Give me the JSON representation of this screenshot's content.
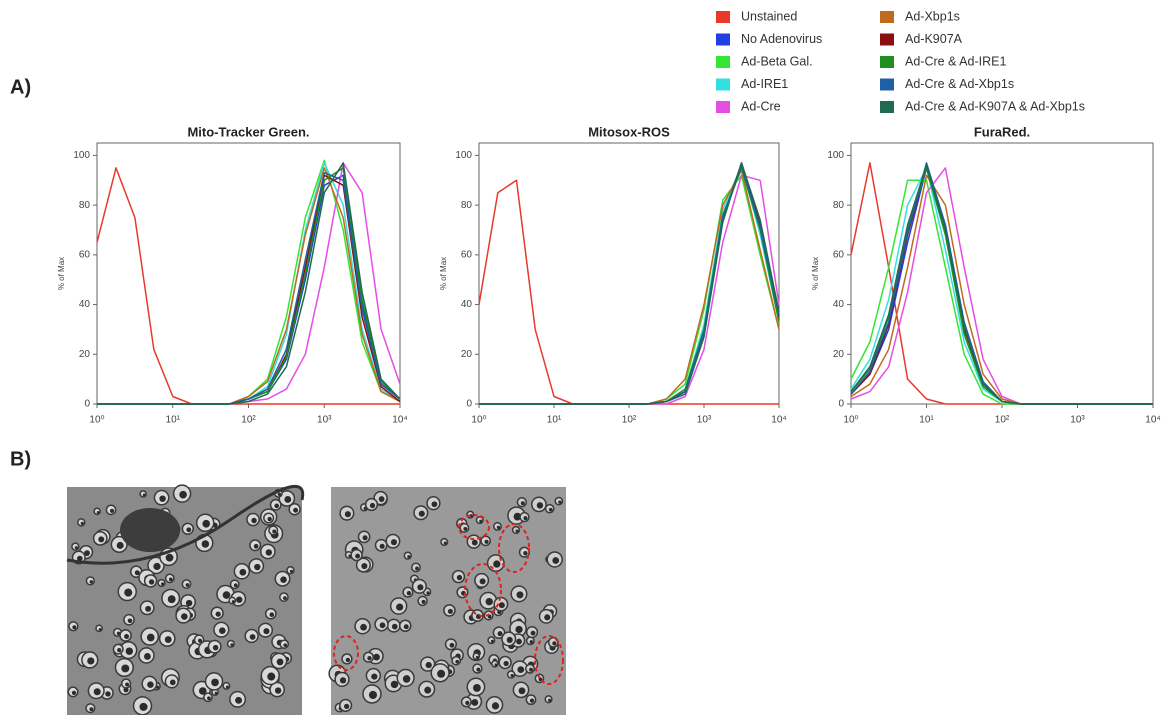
{
  "figure": {
    "panel_a_label": "A)",
    "panel_b_label": "B)"
  },
  "legend": {
    "entries": [
      {
        "name": "Unstained",
        "color": "#e8392b"
      },
      {
        "name": "No Adenovirus",
        "color": "#1f3fe0"
      },
      {
        "name": "Ad-Beta Gal.",
        "color": "#33e633"
      },
      {
        "name": "Ad-IRE1",
        "color": "#33e0e0"
      },
      {
        "name": "Ad-Cre",
        "color": "#e64de6"
      },
      {
        "name": "Ad-Xbp1s",
        "color": "#c06a1f"
      },
      {
        "name": "Ad-K907A",
        "color": "#8b0f0f"
      },
      {
        "name": "Ad-Cre & Ad-IRE1",
        "color": "#1f8f1f"
      },
      {
        "name": "Ad-Cre & Ad-Xbp1s",
        "color": "#1f5fa8"
      },
      {
        "name": "Ad-Cre & Ad-K907A & Ad-Xbp1s",
        "color": "#1f6b4f"
      }
    ]
  },
  "chart_data": [
    {
      "type": "line",
      "title": "Mito-Tracker Green.",
      "y_label": "% of Max",
      "xscale": "log",
      "xlim": [
        1,
        10000
      ],
      "ylim": [
        0,
        105
      ],
      "xticks": [
        {
          "value": 1,
          "label": "10⁰"
        },
        {
          "value": 10,
          "label": "10¹"
        },
        {
          "value": 100,
          "label": "10²"
        },
        {
          "value": 1000,
          "label": "10³"
        },
        {
          "value": 10000,
          "label": "10⁴"
        }
      ],
      "yticks": [
        0,
        20,
        40,
        60,
        80,
        100
      ],
      "x": [
        1,
        1.78,
        3.16,
        5.62,
        10,
        17.8,
        31.6,
        56.2,
        100,
        178,
        316,
        562,
        1000,
        1778,
        3162,
        5623,
        10000
      ],
      "series": [
        {
          "values": [
            65,
            95,
            75,
            22,
            3,
            0,
            0,
            0,
            0,
            0,
            0,
            0,
            0,
            0,
            0,
            0,
            0
          ]
        },
        {
          "values": [
            0,
            0,
            0,
            0,
            0,
            0,
            0,
            0,
            2,
            5,
            18,
            50,
            88,
            92,
            40,
            8,
            2
          ]
        },
        {
          "values": [
            0,
            0,
            0,
            0,
            0,
            0,
            0,
            0,
            3,
            10,
            35,
            75,
            98,
            70,
            25,
            5,
            1
          ]
        },
        {
          "values": [
            0,
            0,
            0,
            0,
            0,
            0,
            0,
            0,
            2,
            7,
            28,
            70,
            97,
            80,
            30,
            6,
            1
          ]
        },
        {
          "values": [
            0,
            0,
            0,
            0,
            0,
            0,
            0,
            0,
            1,
            2,
            6,
            20,
            55,
            97,
            85,
            30,
            8
          ]
        },
        {
          "values": [
            0,
            0,
            0,
            0,
            0,
            0,
            0,
            0,
            3,
            9,
            30,
            68,
            95,
            75,
            28,
            5,
            1
          ]
        },
        {
          "values": [
            0,
            0,
            0,
            0,
            0,
            0,
            0,
            0,
            2,
            5,
            20,
            55,
            92,
            88,
            35,
            7,
            1
          ]
        },
        {
          "values": [
            0,
            0,
            0,
            0,
            0,
            0,
            0,
            0,
            2,
            5,
            19,
            52,
            90,
            95,
            42,
            9,
            2
          ]
        },
        {
          "values": [
            0,
            0,
            0,
            0,
            0,
            0,
            0,
            0,
            2,
            6,
            22,
            58,
            93,
            90,
            38,
            8,
            2
          ]
        },
        {
          "values": [
            0,
            0,
            0,
            0,
            0,
            0,
            0,
            0,
            1,
            4,
            15,
            45,
            85,
            97,
            45,
            10,
            2
          ]
        }
      ]
    },
    {
      "type": "line",
      "title": "Mitosox-ROS",
      "y_label": "% of Max",
      "xscale": "log",
      "xlim": [
        1,
        10000
      ],
      "ylim": [
        0,
        105
      ],
      "xticks": [
        {
          "value": 1,
          "label": "10⁰"
        },
        {
          "value": 10,
          "label": "10¹"
        },
        {
          "value": 100,
          "label": "10²"
        },
        {
          "value": 1000,
          "label": "10³"
        },
        {
          "value": 10000,
          "label": "10⁴"
        }
      ],
      "yticks": [
        0,
        20,
        40,
        60,
        80,
        100
      ],
      "x": [
        1,
        1.78,
        3.16,
        5.62,
        10,
        17.8,
        31.6,
        56.2,
        100,
        178,
        316,
        562,
        1000,
        1778,
        3162,
        5623,
        10000
      ],
      "series": [
        {
          "values": [
            40,
            85,
            90,
            30,
            3,
            0,
            0,
            0,
            0,
            0,
            0,
            0,
            0,
            0,
            0,
            0,
            0
          ]
        },
        {
          "values": [
            0,
            0,
            0,
            0,
            0,
            0,
            0,
            0,
            0,
            0,
            1,
            5,
            30,
            75,
            95,
            70,
            35
          ]
        },
        {
          "values": [
            0,
            0,
            0,
            0,
            0,
            0,
            0,
            0,
            0,
            0,
            2,
            8,
            38,
            82,
            92,
            60,
            30
          ]
        },
        {
          "values": [
            0,
            0,
            0,
            0,
            0,
            0,
            0,
            0,
            0,
            0,
            1,
            6,
            32,
            78,
            96,
            68,
            33
          ]
        },
        {
          "values": [
            0,
            0,
            0,
            0,
            0,
            0,
            0,
            0,
            0,
            0,
            0,
            3,
            22,
            65,
            92,
            90,
            40
          ]
        },
        {
          "values": [
            0,
            0,
            0,
            0,
            0,
            0,
            0,
            0,
            0,
            0,
            2,
            10,
            40,
            80,
            94,
            62,
            30
          ]
        },
        {
          "values": [
            0,
            0,
            0,
            0,
            0,
            0,
            0,
            0,
            0,
            0,
            1,
            5,
            28,
            74,
            97,
            72,
            34
          ]
        },
        {
          "values": [
            0,
            0,
            0,
            0,
            0,
            0,
            0,
            0,
            0,
            0,
            1,
            6,
            30,
            76,
            95,
            70,
            33
          ]
        },
        {
          "values": [
            0,
            0,
            0,
            0,
            0,
            0,
            0,
            0,
            0,
            0,
            1,
            5,
            29,
            75,
            96,
            71,
            36
          ]
        },
        {
          "values": [
            0,
            0,
            0,
            0,
            0,
            0,
            0,
            0,
            0,
            0,
            1,
            4,
            27,
            73,
            97,
            74,
            37
          ]
        }
      ]
    },
    {
      "type": "line",
      "title": "FuraRed.",
      "y_label": "% of Max",
      "xscale": "log",
      "xlim": [
        1,
        10000
      ],
      "ylim": [
        0,
        105
      ],
      "xticks": [
        {
          "value": 1,
          "label": "10⁰"
        },
        {
          "value": 10,
          "label": "10¹"
        },
        {
          "value": 100,
          "label": "10²"
        },
        {
          "value": 1000,
          "label": "10³"
        },
        {
          "value": 10000,
          "label": "10⁴"
        }
      ],
      "yticks": [
        0,
        20,
        40,
        60,
        80,
        100
      ],
      "x": [
        1,
        1.78,
        3.16,
        5.62,
        10,
        17.8,
        31.6,
        56.2,
        100,
        178,
        316,
        562,
        1000,
        1778,
        3162,
        5623,
        10000
      ],
      "series": [
        {
          "values": [
            60,
            97,
            55,
            10,
            2,
            0,
            0,
            0,
            0,
            0,
            0,
            0,
            0,
            0,
            0,
            0,
            0
          ]
        },
        {
          "values": [
            4,
            12,
            30,
            65,
            95,
            72,
            32,
            8,
            1,
            0,
            0,
            0,
            0,
            0,
            0,
            0,
            0
          ]
        },
        {
          "values": [
            10,
            25,
            55,
            90,
            90,
            55,
            20,
            4,
            0,
            0,
            0,
            0,
            0,
            0,
            0,
            0,
            0
          ]
        },
        {
          "values": [
            6,
            18,
            42,
            80,
            95,
            62,
            25,
            6,
            1,
            0,
            0,
            0,
            0,
            0,
            0,
            0,
            0
          ]
        },
        {
          "values": [
            2,
            5,
            15,
            45,
            85,
            95,
            55,
            18,
            3,
            0,
            0,
            0,
            0,
            0,
            0,
            0,
            0
          ]
        },
        {
          "values": [
            3,
            8,
            22,
            55,
            92,
            80,
            40,
            12,
            2,
            0,
            0,
            0,
            0,
            0,
            0,
            0,
            0
          ]
        },
        {
          "values": [
            4,
            12,
            32,
            68,
            96,
            70,
            30,
            8,
            1,
            0,
            0,
            0,
            0,
            0,
            0,
            0,
            0
          ]
        },
        {
          "values": [
            5,
            14,
            35,
            70,
            95,
            68,
            28,
            7,
            1,
            0,
            0,
            0,
            0,
            0,
            0,
            0,
            0
          ]
        },
        {
          "values": [
            4,
            13,
            33,
            69,
            97,
            72,
            33,
            9,
            1,
            0,
            0,
            0,
            0,
            0,
            0,
            0,
            0
          ]
        },
        {
          "values": [
            5,
            15,
            36,
            72,
            96,
            70,
            31,
            8,
            1,
            0,
            0,
            0,
            0,
            0,
            0,
            0,
            0
          ]
        }
      ]
    }
  ]
}
